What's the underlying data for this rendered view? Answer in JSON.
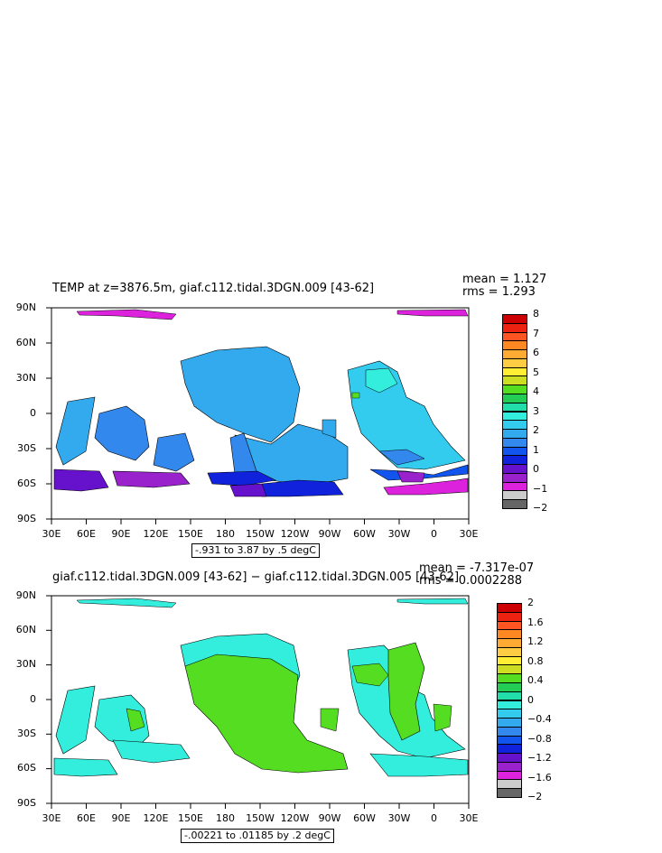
{
  "top_panel": {
    "title": "TEMP at z=3876.5m, giaf.c112.tidal.3DGN.009 [43-62]",
    "mean_text": "mean = 1.127",
    "rms_text": "rms = 1.293",
    "range_text": "-.931 to 3.87 by .5 degC",
    "lat_labels": [
      "90N",
      "60N",
      "30N",
      "0",
      "30S",
      "60S",
      "90S"
    ],
    "lon_labels": [
      "30E",
      "60E",
      "90E",
      "120E",
      "150E",
      "180",
      "150W",
      "120W",
      "90W",
      "60W",
      "30W",
      "0",
      "30E"
    ],
    "colorbar_labels": [
      "8",
      "7",
      "6",
      "5",
      "4",
      "3",
      "2",
      "1",
      "0",
      "−1",
      "−2"
    ],
    "colors": [
      "#cc0000",
      "#ee2211",
      "#ff5522",
      "#ff8822",
      "#ffaa33",
      "#ffcc44",
      "#ffee33",
      "#ccdd22",
      "#55dd22",
      "#22cc55",
      "#22ddaa",
      "#33eedd",
      "#33ccee",
      "#33aaee",
      "#3388ee",
      "#1155ee",
      "#1122dd",
      "#6611cc",
      "#9922cc",
      "#dd22dd",
      "#cccccc",
      "#666666"
    ]
  },
  "bottom_panel": {
    "title": "giaf.c112.tidal.3DGN.009 [43-62] − giaf.c112.tidal.3DGN.005 [43-62]",
    "mean_text": "mean = -7.317e-07",
    "rms_text": "rms = 0.0002288",
    "range_text": "-.00221 to .01185 by .2 degC",
    "lat_labels": [
      "90N",
      "60N",
      "30N",
      "0",
      "30S",
      "60S",
      "90S"
    ],
    "lon_labels": [
      "30E",
      "60E",
      "90E",
      "120E",
      "150E",
      "180",
      "150W",
      "120W",
      "90W",
      "60W",
      "30W",
      "0",
      "30E"
    ],
    "colorbar_labels": [
      "2",
      "1.6",
      "1.2",
      "0.8",
      "0.4",
      "0",
      "−0.4",
      "−0.8",
      "−1.2",
      "−1.6",
      "−2"
    ],
    "colors": [
      "#cc0000",
      "#ee2211",
      "#ff5522",
      "#ff8822",
      "#ffaa33",
      "#ffcc44",
      "#ffee33",
      "#ccdd22",
      "#55dd22",
      "#22cc55",
      "#22ddaa",
      "#33eedd",
      "#33ccee",
      "#33aaee",
      "#3388ee",
      "#1155ee",
      "#1122dd",
      "#6611cc",
      "#9922cc",
      "#dd22dd",
      "#cccccc",
      "#666666"
    ]
  }
}
